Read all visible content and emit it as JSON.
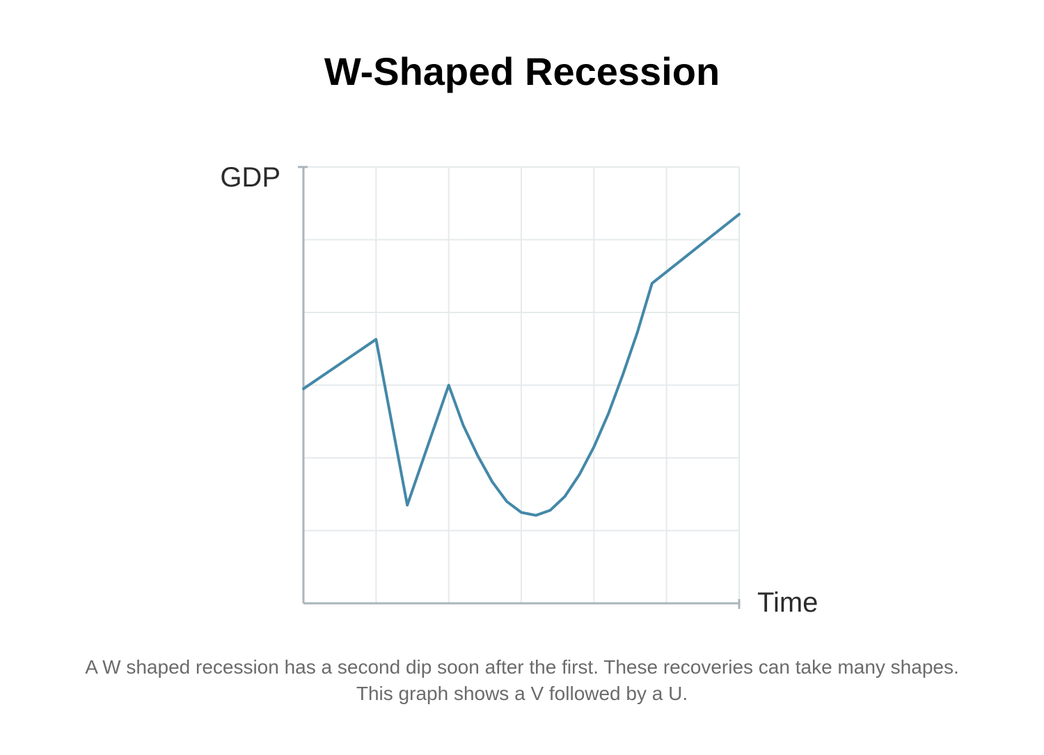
{
  "title": "W-Shaped Recession",
  "caption": {
    "line1": "A W shaped recession has a second dip soon after the first. These recoveries can take many shapes.",
    "line2": "This graph shows a V followed by a U."
  },
  "colors": {
    "line": "#4488a8",
    "axis": "#a9b5bb",
    "grid": "#e6eaec",
    "text": "#2b2b2b",
    "caption": "#6b6b6b"
  },
  "chart_data": {
    "type": "line",
    "xlabel": "Time",
    "ylabel": "GDP",
    "xlim": [
      0,
      6
    ],
    "ylim": [
      0,
      6
    ],
    "grid": true,
    "series": [
      {
        "values": [
          [
            0,
            2.95
          ],
          [
            1,
            3.63
          ],
          [
            1.43,
            1.35
          ],
          [
            2,
            3.0
          ],
          [
            2.2,
            2.45
          ],
          [
            2.4,
            2.03
          ],
          [
            2.6,
            1.67
          ],
          [
            2.8,
            1.4
          ],
          [
            3.0,
            1.25
          ],
          [
            3.2,
            1.21
          ],
          [
            3.4,
            1.28
          ],
          [
            3.6,
            1.47
          ],
          [
            3.8,
            1.77
          ],
          [
            4.0,
            2.15
          ],
          [
            4.2,
            2.61
          ],
          [
            4.4,
            3.15
          ],
          [
            4.6,
            3.73
          ],
          [
            4.8,
            4.4
          ],
          [
            6,
            5.35
          ]
        ]
      }
    ]
  }
}
